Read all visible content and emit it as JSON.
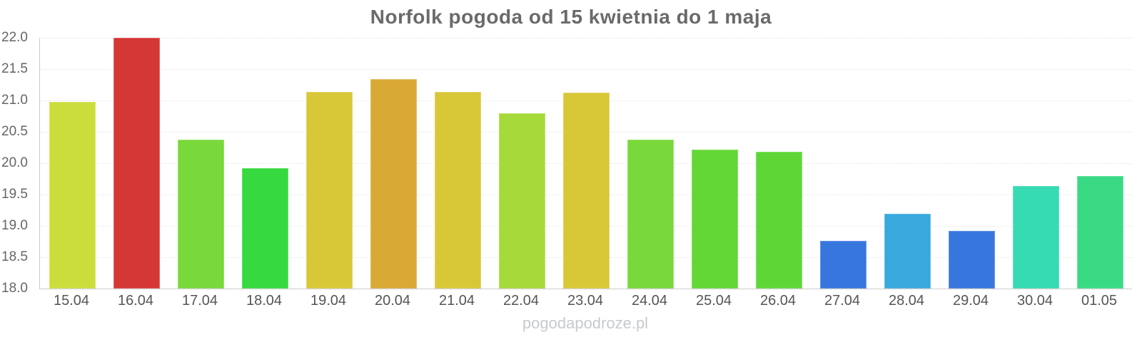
{
  "chart_data": {
    "type": "bar",
    "title": "Norfolk pogoda od 15 kwietnia do 1 maja",
    "categories": [
      "15.04",
      "16.04",
      "17.04",
      "18.04",
      "19.04",
      "20.04",
      "21.04",
      "22.04",
      "23.04",
      "24.04",
      "25.04",
      "26.04",
      "27.04",
      "28.04",
      "29.04",
      "30.04",
      "01.05"
    ],
    "values": [
      20.98,
      22.0,
      20.37,
      19.92,
      21.14,
      21.34,
      21.14,
      20.79,
      21.12,
      20.37,
      20.22,
      20.18,
      18.76,
      19.19,
      18.92,
      19.64,
      19.79
    ],
    "bar_colors": [
      "#cbdd3b",
      "#d53734",
      "#79d83a",
      "#36d93f",
      "#d8c737",
      "#d9a935",
      "#d8c737",
      "#a6d93a",
      "#d8c737",
      "#79d83a",
      "#62d736",
      "#5ed736",
      "#3776dc",
      "#39a9dd",
      "#3776dc",
      "#36dab3",
      "#3ada84"
    ],
    "xlabel": "",
    "ylabel": "",
    "ylim": [
      18.0,
      22.0
    ],
    "yticks": [
      "22.0",
      "21.5",
      "21.0",
      "20.5",
      "20.0",
      "19.5",
      "19.0",
      "18.5",
      "18.0"
    ],
    "grid": "horizontal-dotted",
    "legend": "none"
  },
  "footer": {
    "watermark": "pogodapodroze.pl"
  },
  "colors": {
    "title_text": "#6a6a6a",
    "axis_text": "#666666",
    "xlabel_text": "#555555",
    "watermark_text": "#c6cbce",
    "gridline": "#e6e6e6",
    "axis_line": "#cccccc"
  }
}
